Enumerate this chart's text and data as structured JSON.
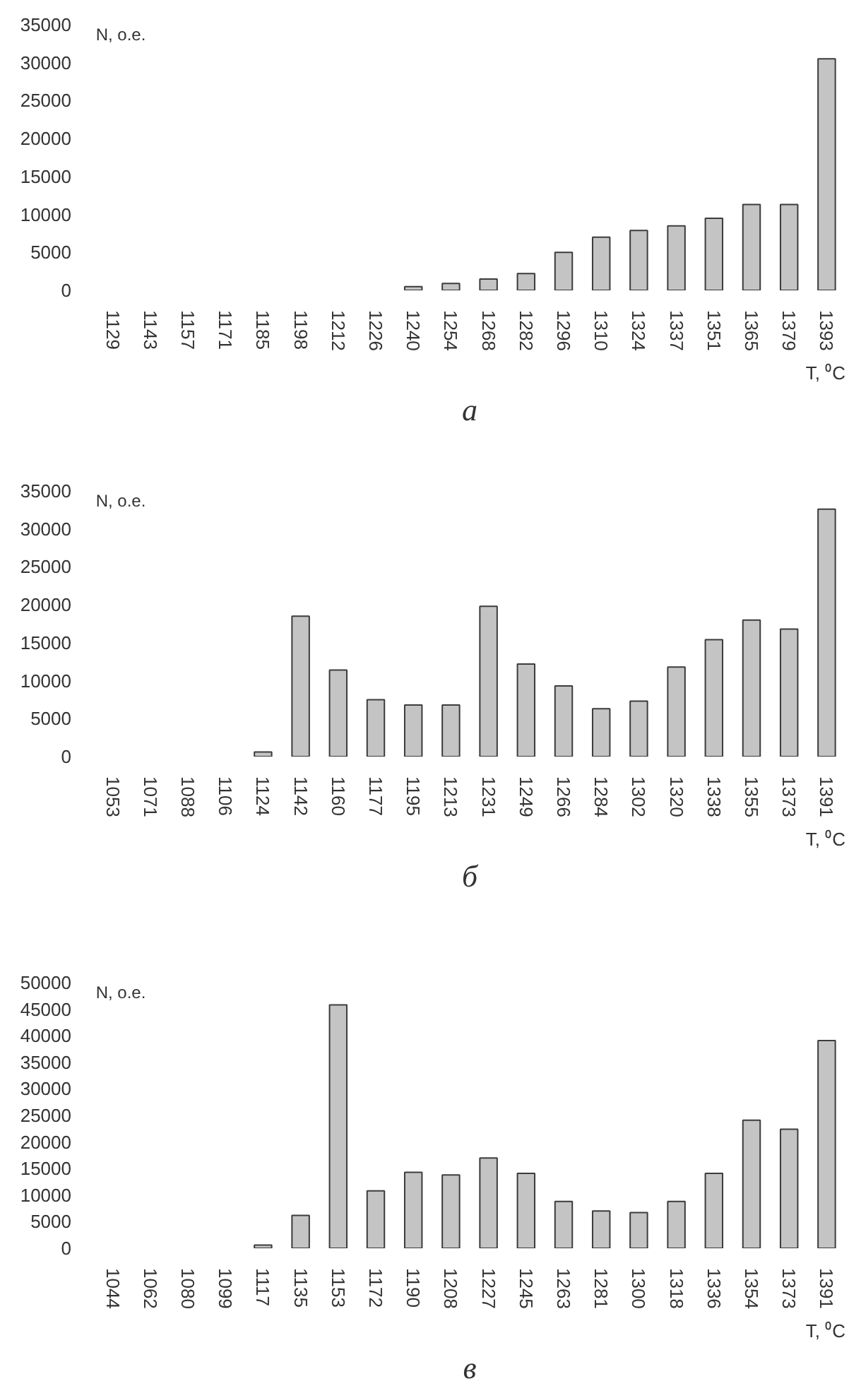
{
  "chart_data": [
    {
      "type": "bar",
      "title": "а",
      "ylabel": "N, о.е.",
      "xlabel": "T, ⁰C",
      "color": "#c4c4c4",
      "categories": [
        "1129",
        "1143",
        "1157",
        "1171",
        "1185",
        "1198",
        "1212",
        "1226",
        "1240",
        "1254",
        "1268",
        "1282",
        "1296",
        "1310",
        "1324",
        "1337",
        "1351",
        "1365",
        "1379",
        "1393"
      ],
      "values": [
        0,
        0,
        0,
        0,
        0,
        0,
        0,
        0,
        500,
        900,
        1500,
        2200,
        5000,
        7000,
        7900,
        8500,
        9500,
        11300,
        11300,
        30500
      ],
      "ylim": [
        0,
        35000
      ],
      "yticks": [
        0,
        5000,
        10000,
        15000,
        20000,
        25000,
        30000,
        35000
      ]
    },
    {
      "type": "bar",
      "title": "б",
      "ylabel": "N, о.е.",
      "xlabel": "T, ⁰C",
      "color": "#c4c4c4",
      "categories": [
        "1053",
        "1071",
        "1088",
        "1106",
        "1124",
        "1142",
        "1160",
        "1177",
        "1195",
        "1213",
        "1231",
        "1249",
        "1266",
        "1284",
        "1302",
        "1320",
        "1338",
        "1355",
        "1373",
        "1391"
      ],
      "values": [
        0,
        0,
        0,
        0,
        600,
        18500,
        11400,
        7500,
        6800,
        6800,
        19800,
        12200,
        9300,
        6300,
        7300,
        11800,
        15400,
        18000,
        16800,
        32600
      ],
      "ylim": [
        0,
        35000
      ],
      "yticks": [
        0,
        5000,
        10000,
        15000,
        20000,
        25000,
        30000,
        35000
      ]
    },
    {
      "type": "bar",
      "title": "в",
      "ylabel": "N, о.е.",
      "xlabel": "T, ⁰C",
      "color": "#c4c4c4",
      "categories": [
        "1044",
        "1062",
        "1080",
        "1099",
        "1117",
        "1135",
        "1153",
        "1172",
        "1190",
        "1208",
        "1227",
        "1245",
        "1263",
        "1281",
        "1300",
        "1318",
        "1336",
        "1354",
        "1373",
        "1391"
      ],
      "values": [
        0,
        0,
        0,
        0,
        600,
        6200,
        45800,
        10800,
        14300,
        13800,
        17000,
        14100,
        8800,
        7000,
        6700,
        8800,
        14100,
        24100,
        22400,
        39100
      ],
      "ylim": [
        0,
        50000
      ],
      "yticks": [
        0,
        5000,
        10000,
        15000,
        20000,
        25000,
        30000,
        35000,
        40000,
        45000,
        50000
      ]
    }
  ]
}
